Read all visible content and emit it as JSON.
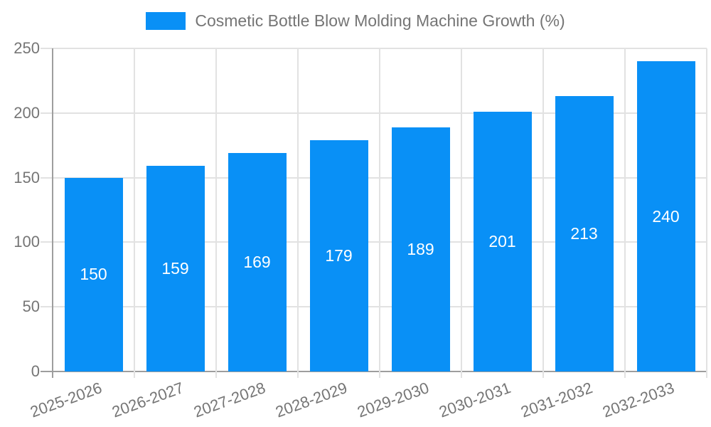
{
  "legend": {
    "title": "Cosmetic Bottle Blow Molding Machine Growth (%)"
  },
  "chart_data": {
    "type": "bar",
    "title": "Cosmetic Bottle Blow Molding Machine Growth (%)",
    "categories": [
      "2025-2026",
      "2026-2027",
      "2027-2028",
      "2028-2029",
      "2029-2030",
      "2030-2031",
      "2031-2032",
      "2032-2033"
    ],
    "values": [
      150,
      159,
      169,
      179,
      189,
      201,
      213,
      240
    ],
    "xlabel": "",
    "ylabel": "",
    "ylim": [
      0,
      250
    ],
    "ytick_step": 50,
    "ytick_labels": [
      "0",
      "50",
      "100",
      "150",
      "200",
      "250"
    ],
    "grid": true,
    "legend_position": "top",
    "x_label_rotation_deg": -20,
    "bar_value_labels_shown": true
  },
  "colors": {
    "bar": "#0990f6",
    "grid": "#e2e2e2",
    "axis": "#9e9e9e",
    "text": "#757575",
    "bar_label_text": "#ffffff",
    "background": "#ffffff"
  }
}
